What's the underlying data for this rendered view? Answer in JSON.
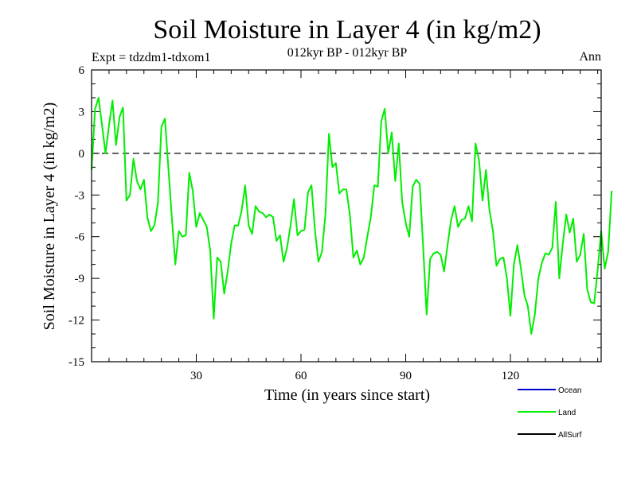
{
  "chart_data": {
    "type": "line",
    "title": "Soil Moisture in Layer 4 (in kg/m2)",
    "subtitle": "012kyr BP - 012kyr BP",
    "experiment_label": "Expt = tdzdm1-tdxom1",
    "season_label": "Ann",
    "xlabel": "Time (in years since start)",
    "ylabel": "Soil Moisture in Layer 4 (in kg/m2)",
    "xlim": [
      0,
      146
    ],
    "ylim": [
      -15,
      6
    ],
    "x_ticks": [
      30,
      60,
      90,
      120
    ],
    "x_tick_labels": [
      "30",
      "60",
      "90",
      "120"
    ],
    "y_ticks": [
      -15,
      -12,
      -9,
      -6,
      -3,
      0,
      3,
      6
    ],
    "y_tick_labels": [
      "-15",
      "-12",
      "-9",
      "-6",
      "-3",
      "0",
      "3",
      "6"
    ],
    "zero_line": 0,
    "series": [
      {
        "name": "Ocean",
        "color": "#0000cc",
        "values": []
      },
      {
        "name": "Land",
        "color": "#00ee00",
        "x_start": 0,
        "x_step": 1,
        "values": [
          -1.2,
          3.2,
          4.0,
          2.0,
          0.0,
          2.0,
          3.8,
          0.6,
          2.6,
          3.3,
          -3.4,
          -3.0,
          -0.4,
          -2.0,
          -2.6,
          -1.9,
          -4.6,
          -5.6,
          -5.2,
          -3.6,
          1.9,
          2.5,
          -1.0,
          -4.6,
          -8.0,
          -5.6,
          -6.0,
          -5.9,
          -1.4,
          -2.7,
          -5.3,
          -4.3,
          -4.8,
          -5.3,
          -7.0,
          -11.9,
          -7.5,
          -7.8,
          -10.1,
          -8.5,
          -6.5,
          -5.2,
          -5.2,
          -4.1,
          -2.3,
          -5.2,
          -5.8,
          -3.8,
          -4.2,
          -4.3,
          -4.6,
          -4.4,
          -4.6,
          -6.3,
          -5.9,
          -7.8,
          -6.8,
          -5.2,
          -3.3,
          -5.9,
          -5.6,
          -5.5,
          -2.8,
          -2.3,
          -5.5,
          -7.8,
          -7.1,
          -4.4,
          1.4,
          -1.0,
          -0.7,
          -2.9,
          -2.6,
          -2.6,
          -4.4,
          -7.5,
          -7.0,
          -8.0,
          -7.5,
          -6.0,
          -4.6,
          -2.3,
          -2.4,
          2.3,
          3.2,
          0.0,
          1.5,
          -2.0,
          0.7,
          -3.5,
          -5.0,
          -6.0,
          -2.4,
          -1.9,
          -2.2,
          -6.7,
          -11.6,
          -7.6,
          -7.2,
          -7.1,
          -7.3,
          -8.5,
          -6.6,
          -4.8,
          -3.8,
          -5.3,
          -4.8,
          -4.7,
          -3.8,
          -4.9,
          0.7,
          -0.5,
          -3.4,
          -1.2,
          -4.1,
          -5.6,
          -8.1,
          -7.6,
          -7.5,
          -9.0,
          -11.7,
          -8.0,
          -6.6,
          -8.3,
          -10.2,
          -11.0,
          -13.0,
          -11.6,
          -9.0,
          -7.9,
          -7.2,
          -7.3,
          -6.8,
          -3.5,
          -9.0,
          -6.5,
          -4.4,
          -5.7,
          -4.7,
          -7.8,
          -7.3,
          -5.8,
          -9.8,
          -10.7,
          -10.8,
          -8.4,
          -5.6,
          -8.3,
          -7.1,
          -2.7
        ]
      },
      {
        "name": "AllSurf",
        "color": "#000000",
        "values": []
      }
    ],
    "legend_position": "bottom-right"
  }
}
